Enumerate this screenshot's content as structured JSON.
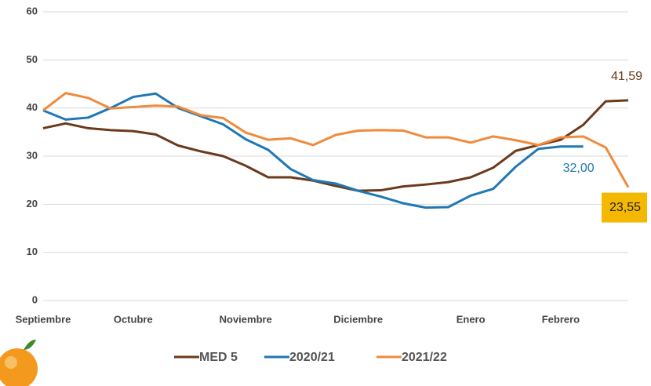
{
  "chart_data": {
    "type": "line",
    "categories": [
      "Septiembre",
      null,
      null,
      null,
      "Octubre",
      null,
      null,
      null,
      null,
      "Noviembre",
      null,
      null,
      null,
      null,
      "Diciembre",
      null,
      null,
      null,
      null,
      "Enero",
      null,
      null,
      null,
      "Febrero",
      null,
      null,
      null
    ],
    "series": [
      {
        "name": "MED 5",
        "color": "#6b3a1c",
        "values": [
          35.8,
          36.8,
          35.8,
          35.4,
          35.2,
          34.5,
          32.2,
          31.0,
          30.0,
          28.0,
          25.6,
          25.6,
          24.9,
          23.8,
          22.8,
          22.9,
          23.7,
          24.1,
          24.6,
          25.6,
          27.6,
          31.1,
          32.3,
          33.4,
          36.5,
          41.4,
          41.59
        ],
        "value_labels": [
          null,
          null,
          null,
          null,
          null,
          null,
          null,
          null,
          null,
          null,
          null,
          null,
          null,
          null,
          null,
          null,
          null,
          null,
          null,
          null,
          null,
          null,
          null,
          null,
          null,
          null,
          "41,59"
        ]
      },
      {
        "name": "2020/21",
        "color": "#1f78b4",
        "values": [
          39.5,
          37.6,
          38.0,
          40.0,
          42.3,
          43.0,
          40.0,
          38.3,
          36.6,
          33.5,
          31.3,
          27.3,
          25.0,
          24.3,
          22.8,
          21.6,
          20.2,
          19.3,
          19.4,
          21.8,
          23.2,
          27.8,
          31.5,
          32.0,
          32.0,
          null,
          null
        ],
        "value_labels": [
          null,
          null,
          null,
          null,
          null,
          null,
          null,
          null,
          null,
          null,
          null,
          null,
          null,
          null,
          null,
          null,
          null,
          null,
          null,
          null,
          null,
          null,
          null,
          null,
          "32,00",
          null,
          null
        ]
      },
      {
        "name": "2021/22",
        "color": "#f08a3c",
        "values": [
          39.5,
          43.1,
          42.1,
          39.9,
          40.2,
          40.5,
          40.3,
          38.5,
          37.9,
          34.9,
          33.4,
          33.7,
          32.3,
          34.4,
          35.3,
          35.4,
          35.3,
          33.9,
          33.9,
          32.8,
          34.1,
          33.3,
          32.3,
          33.9,
          34.1,
          31.8,
          23.55
        ],
        "value_labels": [
          null,
          null,
          null,
          null,
          null,
          null,
          null,
          null,
          null,
          null,
          null,
          null,
          null,
          null,
          null,
          null,
          null,
          null,
          null,
          null,
          null,
          null,
          null,
          null,
          null,
          null,
          "23,55"
        ]
      }
    ],
    "ylim": [
      0,
      60
    ],
    "yticks": [
      0,
      10,
      20,
      30,
      40,
      50,
      60
    ],
    "grid": true
  }
}
